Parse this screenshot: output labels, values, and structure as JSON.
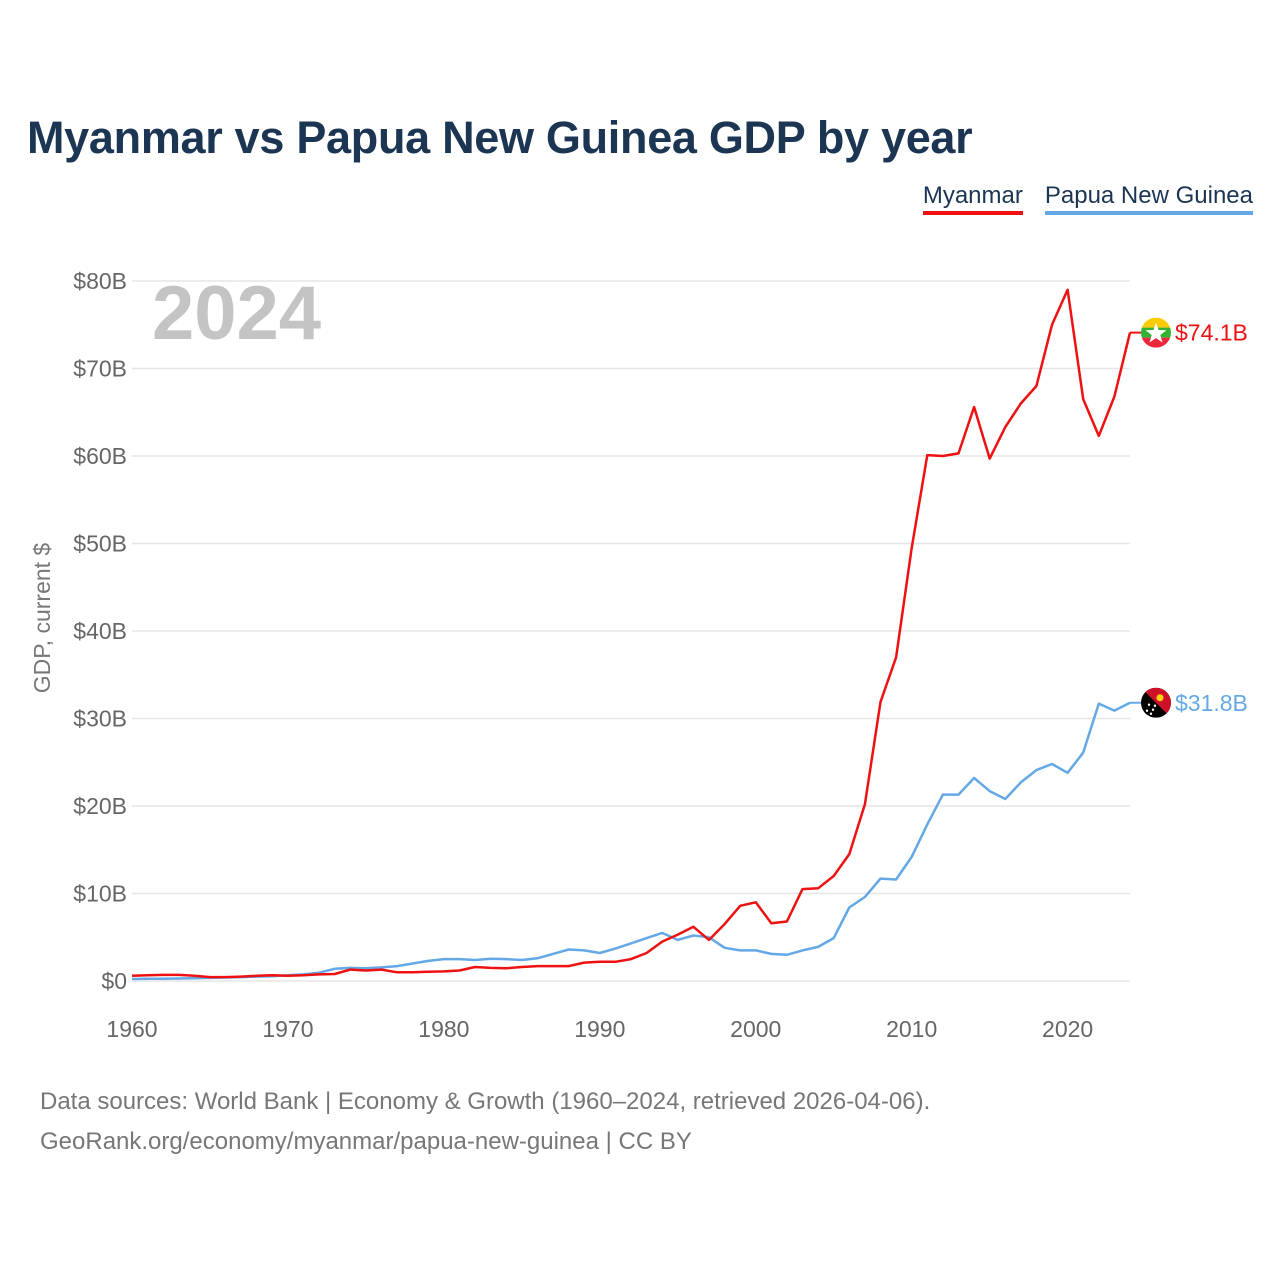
{
  "title": "Myanmar vs Papua New Guinea GDP by year",
  "legend": [
    {
      "name": "Myanmar",
      "color": "#ee1111"
    },
    {
      "name": "Papua New Guinea",
      "color": "#64a8e6"
    }
  ],
  "year_label": "2024",
  "source": {
    "line1": "Data sources: World Bank | Economy & Growth (1960–2024, retrieved 2026-04-06).",
    "line2": "GeoRank.org/economy/myanmar/papua-new-guinea | CC BY"
  },
  "chart_data": {
    "type": "line",
    "title": "Myanmar vs Papua New Guinea GDP by year",
    "xlabel": "",
    "ylabel": "GDP, current $",
    "xlim": [
      1960,
      2024
    ],
    "ylim": [
      0,
      80
    ],
    "grid": true,
    "legend_position": "top-right",
    "x_ticks": [
      1960,
      1970,
      1980,
      1990,
      2000,
      2010,
      2020
    ],
    "y_ticks": [
      0,
      10,
      20,
      30,
      40,
      50,
      60,
      70,
      80
    ],
    "y_tick_labels": [
      "$0",
      "$10B",
      "$20B",
      "$30B",
      "$40B",
      "$50B",
      "$60B",
      "$70B",
      "$80B"
    ],
    "x": [
      1960,
      1961,
      1962,
      1963,
      1964,
      1965,
      1966,
      1967,
      1968,
      1969,
      1970,
      1971,
      1972,
      1973,
      1974,
      1975,
      1976,
      1977,
      1978,
      1979,
      1980,
      1981,
      1982,
      1983,
      1984,
      1985,
      1986,
      1987,
      1988,
      1989,
      1990,
      1991,
      1992,
      1993,
      1994,
      1995,
      1996,
      1997,
      1998,
      1999,
      2000,
      2001,
      2002,
      2003,
      2004,
      2005,
      2006,
      2007,
      2008,
      2009,
      2010,
      2011,
      2012,
      2013,
      2014,
      2015,
      2016,
      2017,
      2018,
      2019,
      2020,
      2021,
      2022,
      2023,
      2024
    ],
    "series": [
      {
        "name": "Myanmar",
        "color": "#ee1111",
        "end_label": "$74.1B",
        "flag": "myanmar-flag",
        "values": [
          0.6,
          0.65,
          0.7,
          0.7,
          0.6,
          0.45,
          0.45,
          0.5,
          0.6,
          0.65,
          0.6,
          0.65,
          0.75,
          0.8,
          1.3,
          1.2,
          1.3,
          1.0,
          1.0,
          1.05,
          1.1,
          1.2,
          1.6,
          1.5,
          1.45,
          1.6,
          1.7,
          1.7,
          1.7,
          2.1,
          2.2,
          2.2,
          2.5,
          3.2,
          4.5,
          5.3,
          6.2,
          4.7,
          6.5,
          8.6,
          9.0,
          6.6,
          6.8,
          10.5,
          10.6,
          12.0,
          14.5,
          20.2,
          31.9,
          37.0,
          49.5,
          60.1,
          60.0,
          60.3,
          65.6,
          59.7,
          63.3,
          66.0,
          68.0,
          75.0,
          79.0,
          66.5,
          62.3,
          66.8,
          74.1
        ]
      },
      {
        "name": "Papua New Guinea",
        "color": "#64a8e6",
        "end_label": "$31.8B",
        "flag": "papua-new-guinea-flag",
        "values": [
          0.23,
          0.25,
          0.26,
          0.28,
          0.31,
          0.35,
          0.4,
          0.45,
          0.5,
          0.55,
          0.65,
          0.75,
          0.95,
          1.4,
          1.5,
          1.45,
          1.55,
          1.7,
          2.0,
          2.3,
          2.5,
          2.5,
          2.4,
          2.55,
          2.5,
          2.4,
          2.6,
          3.1,
          3.6,
          3.5,
          3.2,
          3.7,
          4.3,
          4.9,
          5.5,
          4.7,
          5.2,
          5.0,
          3.8,
          3.5,
          3.5,
          3.1,
          3.0,
          3.5,
          3.9,
          4.9,
          8.4,
          9.6,
          11.7,
          11.6,
          14.2,
          17.9,
          21.3,
          21.3,
          23.2,
          21.7,
          20.8,
          22.7,
          24.1,
          24.8,
          23.8,
          26.1,
          31.7,
          30.9,
          31.8
        ]
      }
    ]
  }
}
